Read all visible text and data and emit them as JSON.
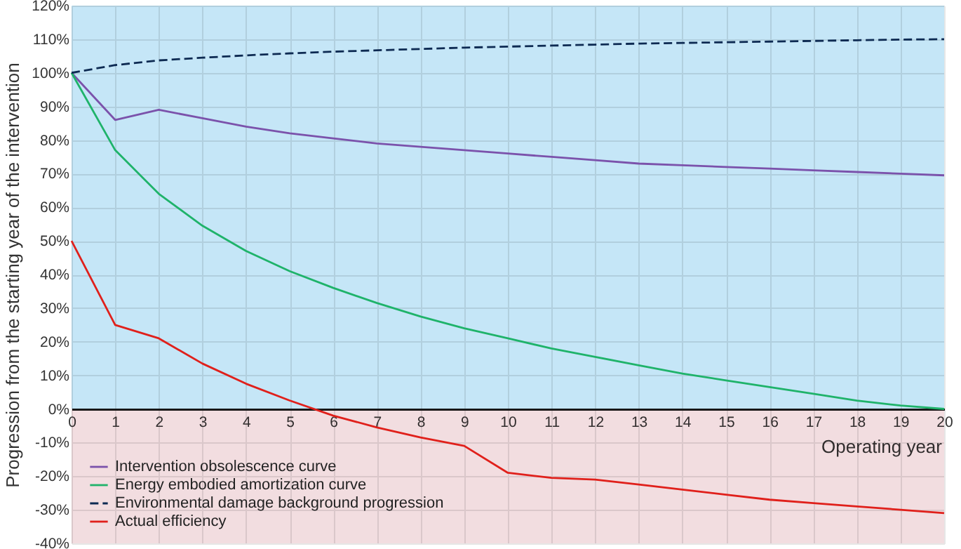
{
  "chart_data": {
    "type": "line",
    "ylabel": "Progression from the starting year of the intervention",
    "xlabel": "Operating year",
    "x": [
      0,
      1,
      2,
      3,
      4,
      5,
      6,
      7,
      8,
      9,
      10,
      11,
      12,
      13,
      14,
      15,
      16,
      17,
      18,
      19,
      20
    ],
    "xlim": [
      0,
      20
    ],
    "xticks": [
      0,
      1,
      2,
      3,
      4,
      5,
      6,
      7,
      8,
      9,
      10,
      11,
      12,
      13,
      14,
      15,
      16,
      17,
      18,
      19,
      20
    ],
    "ylim": [
      -40,
      120
    ],
    "yticks": [
      {
        "value": -40,
        "label": "-40%"
      },
      {
        "value": -30,
        "label": "-30%"
      },
      {
        "value": -20,
        "label": "-20%"
      },
      {
        "value": -10,
        "label": "-10%"
      },
      {
        "value": 0,
        "label": "0%"
      },
      {
        "value": 10,
        "label": "10%"
      },
      {
        "value": 20,
        "label": "20%"
      },
      {
        "value": 30,
        "label": "30%"
      },
      {
        "value": 40,
        "label": "40%"
      },
      {
        "value": 50,
        "label": "50%"
      },
      {
        "value": 60,
        "label": "60%"
      },
      {
        "value": 70,
        "label": "70%"
      },
      {
        "value": 80,
        "label": "80%"
      },
      {
        "value": 90,
        "label": "90%"
      },
      {
        "value": 100,
        "label": "100%"
      },
      {
        "value": 110,
        "label": "110%"
      },
      {
        "value": 120,
        "label": "120%"
      }
    ],
    "grid": true,
    "legend": "bottom left",
    "marker": "none",
    "bands": [
      {
        "axis": "y",
        "from": 0,
        "to": 120,
        "color": "#c5e6f7"
      },
      {
        "axis": "y",
        "from": -40,
        "to": 0,
        "color": "#f2dde0"
      }
    ],
    "series": [
      {
        "name": "Intervention obsolescence curve",
        "color": "#7b52ab",
        "line_style": "solid",
        "values": [
          100,
          86,
          89,
          86.5,
          84,
          82,
          80.5,
          79,
          78,
          77,
          76,
          75,
          74,
          73,
          72.5,
          72,
          71.5,
          71,
          70.5,
          70,
          69.5
        ]
      },
      {
        "name": "Energy embodied amortization curve",
        "color": "#1fb36a",
        "line_style": "solid",
        "values": [
          100,
          77,
          64,
          54.5,
          47,
          41,
          36,
          31.5,
          27.5,
          24,
          21,
          18,
          15.5,
          13,
          10.5,
          8.5,
          6.5,
          4.5,
          2.5,
          1,
          0
        ]
      },
      {
        "name": "Environmental damage background progression",
        "color": "#0d2a52",
        "line_style": "dashed",
        "values": [
          100,
          102.3,
          103.7,
          104.5,
          105.2,
          105.8,
          106.3,
          106.7,
          107.1,
          107.5,
          107.8,
          108.1,
          108.4,
          108.7,
          108.9,
          109.1,
          109.3,
          109.5,
          109.7,
          109.9,
          110
        ]
      },
      {
        "name": "Actual efficiency",
        "color": "#e0201b",
        "line_style": "solid",
        "values": [
          50,
          25,
          21,
          13.5,
          7.5,
          2.5,
          -2,
          -5.5,
          -8.5,
          -11,
          -19,
          -20.5,
          -21,
          -22.5,
          -24,
          -25.5,
          -27,
          -28,
          -29,
          -30,
          -31
        ]
      }
    ]
  }
}
